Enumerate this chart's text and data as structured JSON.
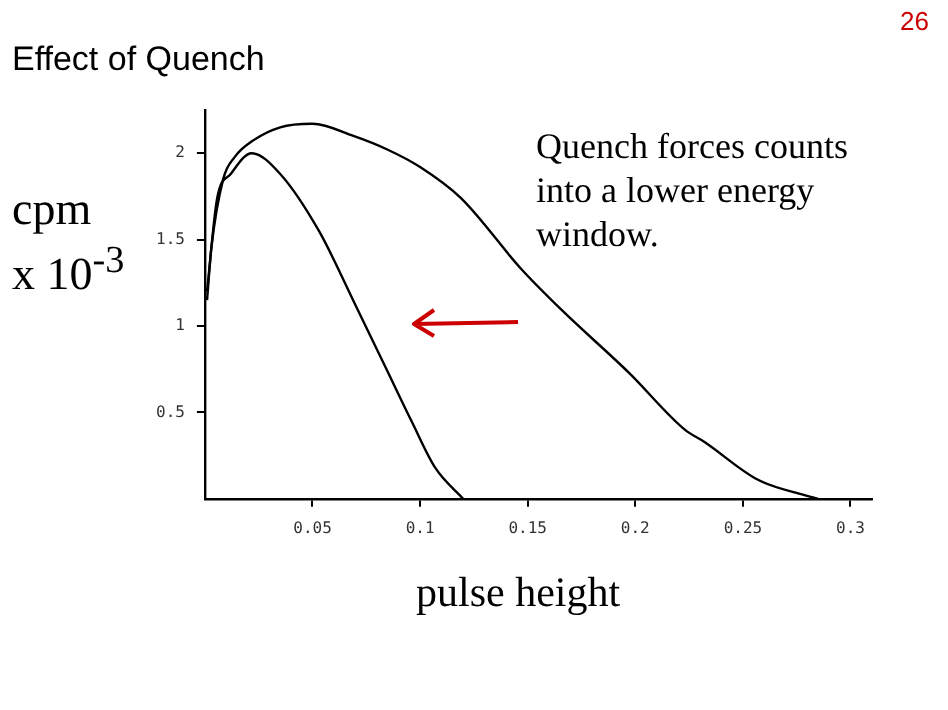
{
  "chart_data": {
    "type": "line",
    "title": "Effect of Quench",
    "xlabel": "pulse height",
    "ylabel": "cpm x 10$^{-3}$",
    "annotations": [
      "Quench forces counts into a lower energy window.",
      "26"
    ],
    "series": [
      {
        "color": "#000000",
        "x": [
          0.001,
          0.003,
          0.0085,
          0.014,
          0.022,
          0.035,
          0.05,
          0.069,
          0.085,
          0.1,
          0.119,
          0.147,
          0.166,
          0.197,
          0.223,
          0.232,
          0.257,
          0.279,
          0.285
        ],
        "values": [
          1.15,
          1.45,
          1.85,
          1.98,
          2.07,
          2.15,
          2.17,
          2.1,
          2.02,
          1.92,
          1.74,
          1.33,
          1.09,
          0.73,
          0.4,
          0.33,
          0.11,
          0.02,
          0
        ]
      },
      {
        "color": "#000000",
        "x": [
          0.001,
          0.0057,
          0.012,
          0.0217,
          0.035,
          0.053,
          0.07,
          0.084,
          0.096,
          0.107,
          0.12
        ],
        "values": [
          1.2,
          1.74,
          1.88,
          2.0,
          1.88,
          1.55,
          1.12,
          0.76,
          0.45,
          0.18,
          0
        ]
      }
    ],
    "xlim": [
      0,
      0.31
    ],
    "xticks": [
      0.05,
      0.1,
      0.15,
      0.2,
      0.25,
      0.3
    ],
    "ylim": [
      0,
      2.25
    ],
    "yticks": [
      0.5,
      1,
      1.5,
      2
    ],
    "grid": false,
    "legend": false,
    "marker": "none",
    "line_style": "solid"
  }
}
